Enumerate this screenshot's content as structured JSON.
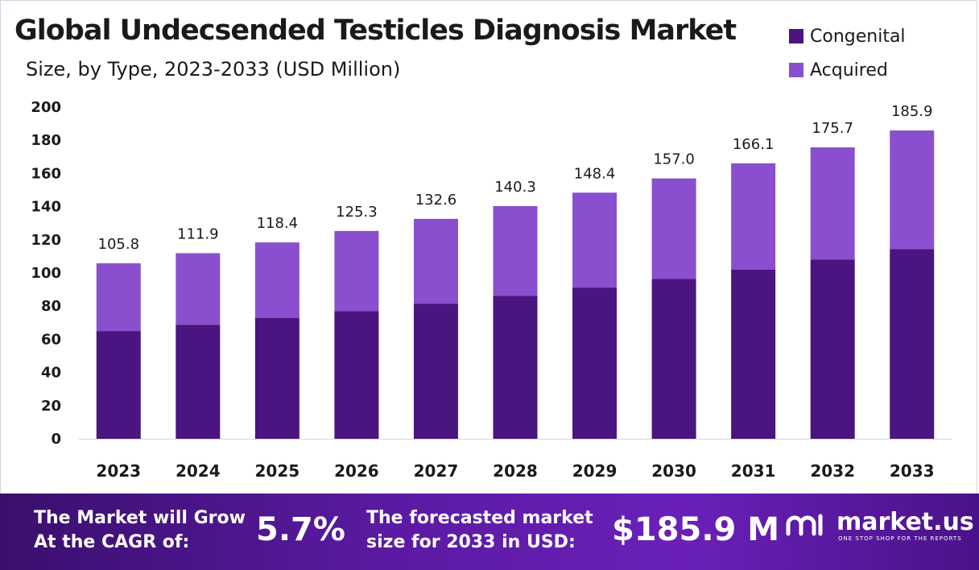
{
  "title": "Global Undecsended Testicles Diagnosis Market",
  "subtitle": "Size, by Type, 2023-2033 (USD Million)",
  "legend": [
    {
      "label": "Congenital",
      "color": "#4a1580"
    },
    {
      "label": "Acquired",
      "color": "#8a4fce"
    }
  ],
  "chart_data": {
    "type": "bar",
    "stacked": true,
    "categories": [
      "2023",
      "2024",
      "2025",
      "2026",
      "2027",
      "2028",
      "2029",
      "2030",
      "2031",
      "2032",
      "2033"
    ],
    "series": [
      {
        "name": "Congenital",
        "values": [
          65.0,
          68.8,
          72.8,
          77.0,
          81.5,
          86.2,
          91.2,
          96.5,
          102.1,
          108.0,
          114.3
        ]
      },
      {
        "name": "Acquired",
        "values": [
          40.8,
          43.1,
          45.6,
          48.3,
          51.1,
          54.1,
          57.2,
          60.5,
          64.0,
          67.7,
          71.6
        ]
      }
    ],
    "totals": [
      105.8,
      111.9,
      118.4,
      125.3,
      132.6,
      140.3,
      148.4,
      157.0,
      166.1,
      175.7,
      185.9
    ],
    "total_labels": [
      "105.8",
      "111.9",
      "118.4",
      "125.3",
      "132.6",
      "140.3",
      "148.4",
      "157.0",
      "166.1",
      "175.7",
      "185.9"
    ],
    "yticks": [
      "0",
      "20",
      "40",
      "60",
      "80",
      "100",
      "120",
      "140",
      "160",
      "180",
      "200"
    ],
    "ylim": [
      0,
      200
    ],
    "grid": false,
    "legend_position": "top-right"
  },
  "footer": {
    "cagr_line1": "The Market will Grow",
    "cagr_line2": "At the CAGR of:",
    "cagr_value": "5.7%",
    "forecast_line1": "The forecasted market",
    "forecast_line2": "size for 2033 in USD:",
    "forecast_value": "$185.9 M",
    "brand_name": "market.us",
    "brand_tagline": "ONE STOP SHOP FOR THE REPORTS",
    "brand_icon": "market-us-logo-icon"
  }
}
